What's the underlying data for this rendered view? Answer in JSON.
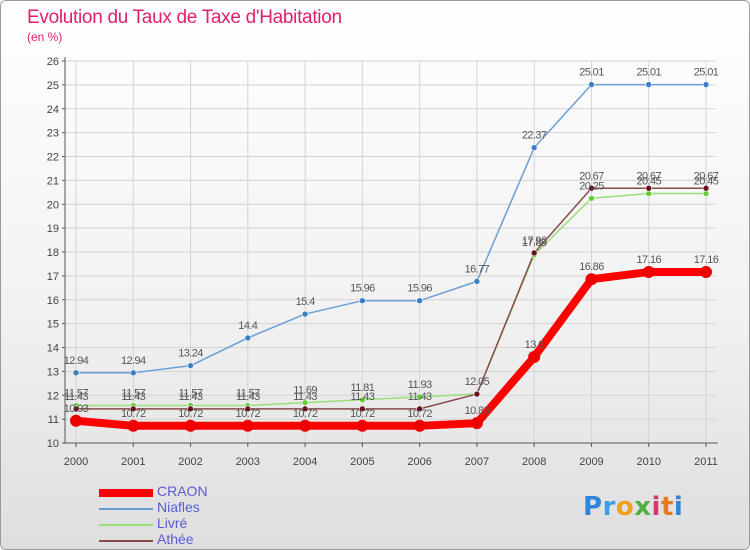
{
  "title": "Evolution du Taux de Taxe d'Habitation",
  "subtitle": "(en %)",
  "logo": {
    "letters": [
      "P",
      "r",
      "o",
      "x",
      "i",
      "t",
      "i"
    ],
    "colors": [
      "#2e86d6",
      "#3aa0e0",
      "#f0a020",
      "#4fb043",
      "#d6386e",
      "#e07b20",
      "#2e86d6"
    ]
  },
  "chart_data": {
    "type": "line",
    "title": "Evolution du Taux de Taxe d'Habitation",
    "ylabel": "(en %)",
    "xlabel": "",
    "x": [
      "2000",
      "2001",
      "2002",
      "2003",
      "2004",
      "2005",
      "2006",
      "2007",
      "2008",
      "2009",
      "2010",
      "2011"
    ],
    "ylim": [
      10,
      26
    ],
    "yticks": [
      "10",
      "11",
      "12",
      "13",
      "14",
      "15",
      "16",
      "17",
      "18",
      "19",
      "20",
      "21",
      "22",
      "23",
      "24",
      "25",
      "26"
    ],
    "grid": true,
    "legend_position": "bottom-left",
    "series": [
      {
        "name": "Niafles",
        "color": "#6b9fd4",
        "point_color": "#3a7fc4",
        "values": [
          12.94,
          12.94,
          13.24,
          14.4,
          15.4,
          15.96,
          15.96,
          16.77,
          22.37,
          25.01,
          25.01,
          25.01
        ],
        "labels": [
          "12.94",
          "12.94",
          "13.24",
          "14.4",
          "15.4",
          "15.96",
          "15.96",
          "16.77",
          "22.37",
          "25.01",
          "25.01",
          "25.01"
        ]
      },
      {
        "name": "Livré",
        "color": "#99e07a",
        "point_color": "#66cc33",
        "values": [
          11.57,
          11.57,
          11.57,
          11.57,
          11.69,
          11.81,
          11.93,
          12.05,
          17.88,
          20.25,
          20.45,
          20.45
        ],
        "labels": [
          "11.57",
          "11.57",
          "11.57",
          "11.57",
          "11.69",
          "11.81",
          "11.93",
          "12.05",
          "17.88",
          "20.25",
          "20.45",
          "20.45"
        ]
      },
      {
        "name": "Athée",
        "color": "#8b4a4a",
        "point_color": "#6b1020",
        "values": [
          11.43,
          11.43,
          11.43,
          11.43,
          11.43,
          11.43,
          11.43,
          12.05,
          17.96,
          20.67,
          20.67,
          20.67
        ],
        "labels": [
          "11.43",
          "11.43",
          "11.43",
          "11.43",
          "11.43",
          "11.43",
          "11.43",
          "",
          "17.96",
          "20.67",
          "20.67",
          "20.67"
        ]
      },
      {
        "name": "CRAON",
        "color": "#ff0000",
        "point_color": "#ee0000",
        "values": [
          10.93,
          10.72,
          10.72,
          10.72,
          10.72,
          10.72,
          10.72,
          10.83,
          13.6,
          16.86,
          17.16,
          17.16
        ],
        "labels": [
          "10.93",
          "10.72",
          "10.72",
          "10.72",
          "10.72",
          "10.72",
          "10.72",
          "10.83",
          "13.6",
          "16.86",
          "17.16",
          "17.16"
        ]
      }
    ],
    "legend": [
      {
        "name": "CRAON",
        "color": "#ff0000",
        "thickness": 8
      },
      {
        "name": "Niafles",
        "color": "#6b9fd4",
        "thickness": 2
      },
      {
        "name": "Livré",
        "color": "#99e07a",
        "thickness": 2
      },
      {
        "name": "Athée",
        "color": "#8b4a4a",
        "thickness": 2
      }
    ]
  }
}
